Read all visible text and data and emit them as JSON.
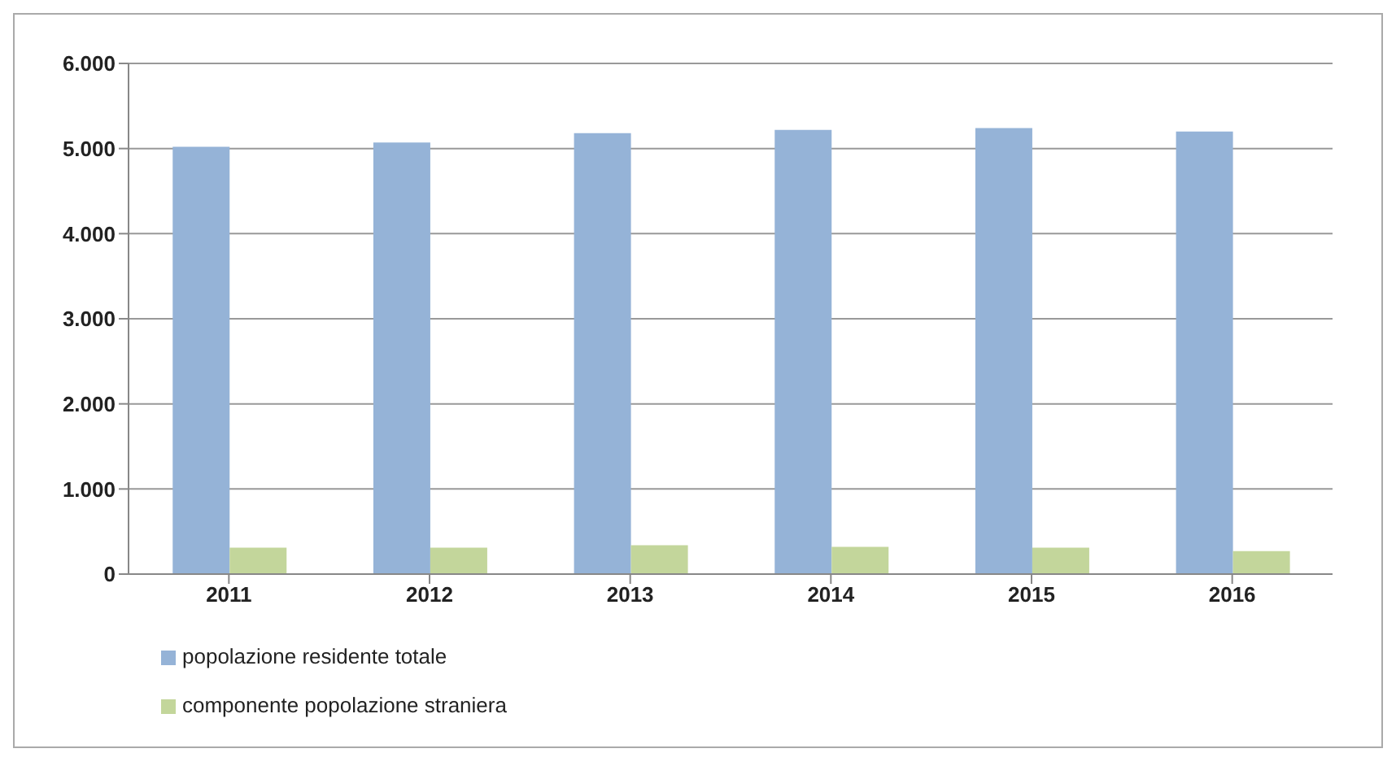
{
  "chart_data": {
    "type": "bar",
    "categories": [
      "2011",
      "2012",
      "2013",
      "2014",
      "2015",
      "2016"
    ],
    "series": [
      {
        "name": "popolazione residente totale",
        "color": "#95b3d7",
        "values": [
          5020,
          5070,
          5180,
          5220,
          5240,
          5200
        ]
      },
      {
        "name": "componente popolazione straniera",
        "color": "#c3d69b",
        "values": [
          310,
          310,
          340,
          320,
          310,
          270
        ]
      }
    ],
    "ylim": [
      0,
      6000
    ],
    "yticks": [
      {
        "value": 0,
        "label": "0"
      },
      {
        "value": 1000,
        "label": "1.000"
      },
      {
        "value": 2000,
        "label": "2.000"
      },
      {
        "value": 3000,
        "label": "3.000"
      },
      {
        "value": 4000,
        "label": "4.000"
      },
      {
        "value": 5000,
        "label": "5.000"
      },
      {
        "value": 6000,
        "label": "6.000"
      }
    ],
    "grid": "y",
    "legend": "bottom left"
  }
}
